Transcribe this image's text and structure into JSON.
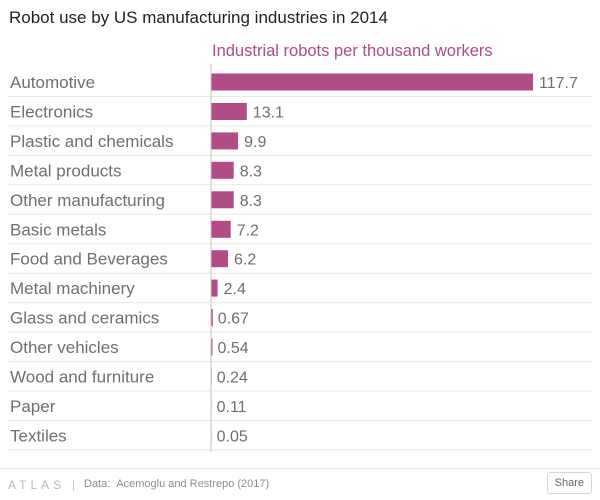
{
  "chart_data": {
    "type": "bar",
    "orientation": "horizontal",
    "title": "Robot use by US manufacturing industries in 2014",
    "subtitle": "Industrial robots per thousand workers",
    "categories": [
      "Automotive",
      "Electronics",
      "Plastic and chemicals",
      "Metal products",
      "Other manufacturing",
      "Basic metals",
      "Food and Beverages",
      "Metal machinery",
      "Glass and ceramics",
      "Other vehicles",
      "Wood and furniture",
      "Paper",
      "Textiles"
    ],
    "values": [
      117.7,
      13.1,
      9.9,
      8.3,
      8.3,
      7.2,
      6.2,
      2.4,
      0.67,
      0.54,
      0.24,
      0.11,
      0.05
    ],
    "value_labels": [
      "117.7",
      "13.1",
      "9.9",
      "8.3",
      "8.3",
      "7.2",
      "6.2",
      "2.4",
      "0.67",
      "0.54",
      "0.24",
      "0.11",
      "0.05"
    ],
    "xlim": [
      0,
      120
    ],
    "grid": true,
    "legend": "none",
    "bar_color": "#b24c86"
  },
  "footer": {
    "logo": "ATLAS",
    "separator": "|",
    "source_label": "Data:",
    "source_text": "Acemoglu and Restrepo (2017)",
    "share_label": "Share"
  },
  "colors": {
    "accent": "#b24c86",
    "label": "#6f6f6f",
    "grid": "#e8e8e8"
  }
}
